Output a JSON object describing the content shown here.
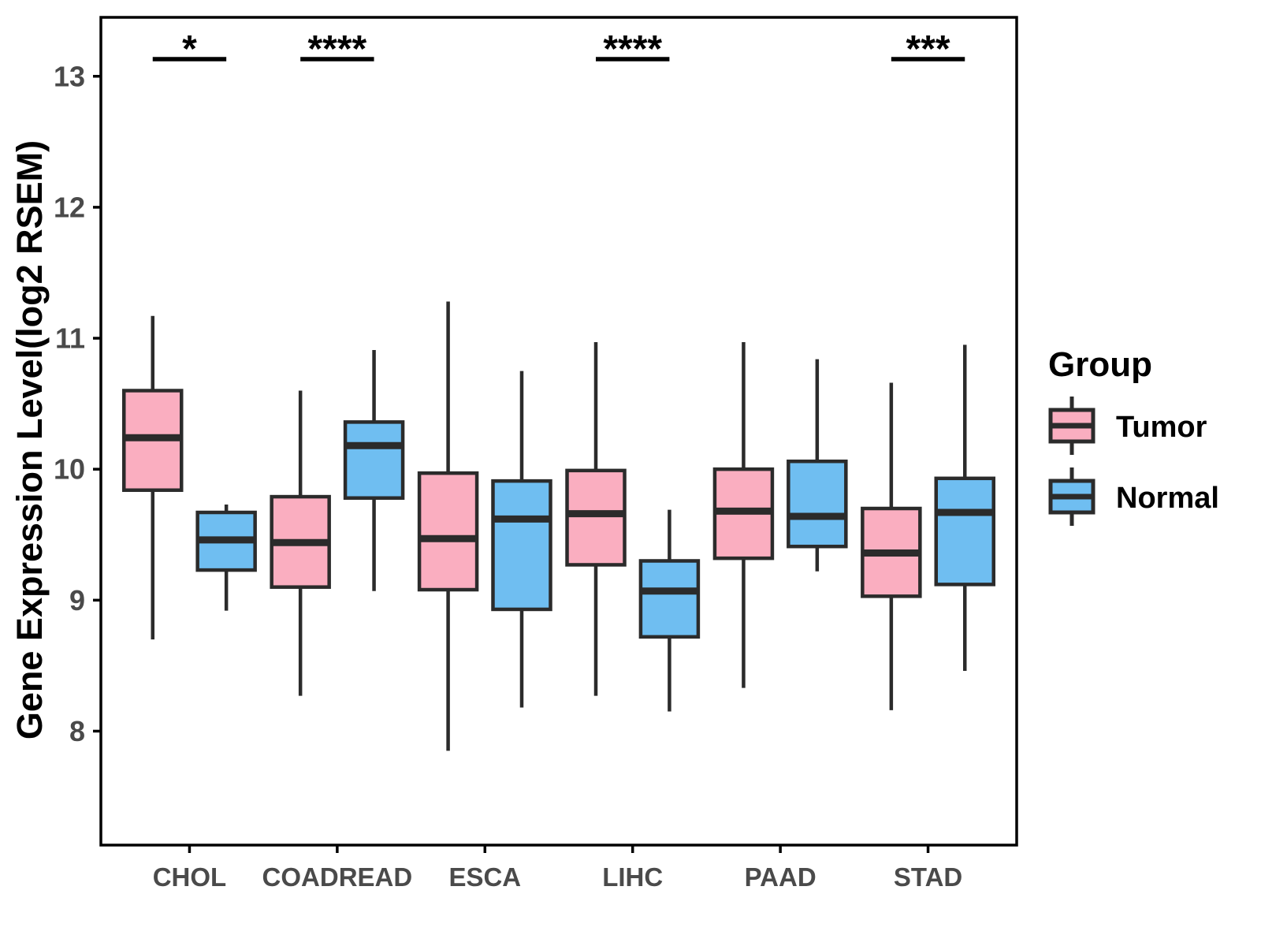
{
  "chart_data": {
    "type": "boxplot",
    "title": "",
    "xlabel": "",
    "ylabel": "Gene Expression Level(log2 RSEM)",
    "ylim": [
      7.13,
      13.45
    ],
    "y_ticks": [
      13,
      12,
      11,
      10,
      9,
      8
    ],
    "grid": false,
    "categories": [
      "CHOL",
      "COADREAD",
      "ESCA",
      "LIHC",
      "PAAD",
      "STAD"
    ],
    "groups": [
      "Tumor",
      "Normal"
    ],
    "series": [
      {
        "name": "Tumor",
        "color": "#FAAEC0",
        "boxes": [
          {
            "category": "CHOL",
            "min": 8.7,
            "q1": 9.84,
            "median": 10.24,
            "q3": 10.6,
            "max": 11.17
          },
          {
            "category": "COADREAD",
            "min": 8.27,
            "q1": 9.1,
            "median": 9.44,
            "q3": 9.79,
            "max": 10.6
          },
          {
            "category": "ESCA",
            "min": 7.85,
            "q1": 9.08,
            "median": 9.47,
            "q3": 9.97,
            "max": 11.28
          },
          {
            "category": "LIHC",
            "min": 8.27,
            "q1": 9.27,
            "median": 9.66,
            "q3": 9.99,
            "max": 10.97
          },
          {
            "category": "PAAD",
            "min": 8.33,
            "q1": 9.32,
            "median": 9.68,
            "q3": 10.0,
            "max": 10.97
          },
          {
            "category": "STAD",
            "min": 8.16,
            "q1": 9.03,
            "median": 9.36,
            "q3": 9.7,
            "max": 10.66
          }
        ]
      },
      {
        "name": "Normal",
        "color": "#6FBEF1",
        "boxes": [
          {
            "category": "CHOL",
            "min": 8.92,
            "q1": 9.23,
            "median": 9.46,
            "q3": 9.67,
            "max": 9.73
          },
          {
            "category": "COADREAD",
            "min": 9.07,
            "q1": 9.78,
            "median": 10.18,
            "q3": 10.36,
            "max": 10.91
          },
          {
            "category": "ESCA",
            "min": 8.18,
            "q1": 8.93,
            "median": 9.62,
            "q3": 9.91,
            "max": 10.75
          },
          {
            "category": "LIHC",
            "min": 8.15,
            "q1": 8.72,
            "median": 9.07,
            "q3": 9.3,
            "max": 9.69
          },
          {
            "category": "PAAD",
            "min": 9.22,
            "q1": 9.41,
            "median": 9.64,
            "q3": 10.06,
            "max": 10.84
          },
          {
            "category": "STAD",
            "min": 8.46,
            "q1": 9.12,
            "median": 9.67,
            "q3": 9.93,
            "max": 10.95
          }
        ]
      }
    ],
    "significance": [
      {
        "category": "CHOL",
        "label": "*"
      },
      {
        "category": "COADREAD",
        "label": "****"
      },
      {
        "category": "LIHC",
        "label": "****"
      },
      {
        "category": "STAD",
        "label": "***"
      }
    ],
    "legend": {
      "title": "Group",
      "position": "right",
      "items": [
        {
          "label": "Tumor",
          "color": "#FAAEC0"
        },
        {
          "label": "Normal",
          "color": "#6FBEF1"
        }
      ]
    },
    "colors": {
      "box_border": "#2B2B2B",
      "axis_text": "#4A4A4A",
      "panel_border": "#000000",
      "annotation": "#000000"
    }
  }
}
